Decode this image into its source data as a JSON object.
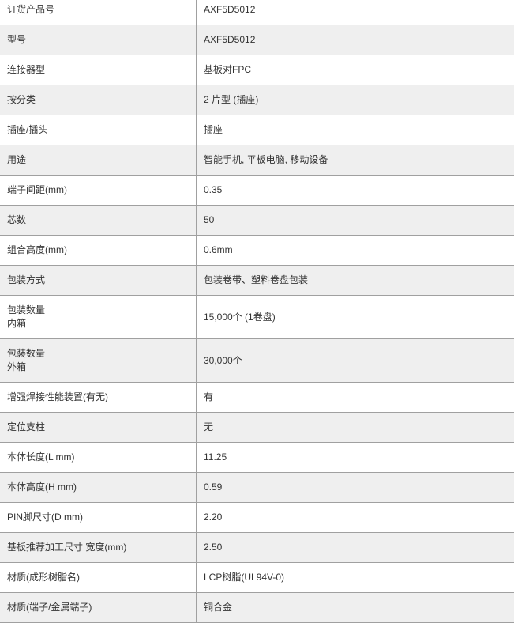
{
  "rows": [
    {
      "label": "订货产品号",
      "value": "AXF5D5012"
    },
    {
      "label": "型号",
      "value": "AXF5D5012"
    },
    {
      "label": "连接器型",
      "value": "基板对FPC"
    },
    {
      "label": "按分类",
      "value": "2 片型 (插座)"
    },
    {
      "label": "插座/插头",
      "value": "插座"
    },
    {
      "label": "用途",
      "value": "智能手机, 平板电脑, 移动设备"
    },
    {
      "label": "端子间距(mm)",
      "value": "0.35"
    },
    {
      "label": "芯数",
      "value": "50"
    },
    {
      "label": "组合高度(mm)",
      "value": "0.6mm"
    },
    {
      "label": "包装方式",
      "value": "包装卷带、塑料卷盘包装"
    },
    {
      "label": "包装数量",
      "label2": "内箱",
      "value": "15,000个 (1卷盘)"
    },
    {
      "label": "包装数量",
      "label2": "外箱",
      "value": "30,000个"
    },
    {
      "label": "增强焊接性能装置(有无)",
      "value": "有"
    },
    {
      "label": "定位支柱",
      "value": "无"
    },
    {
      "label": "本体长度(L mm)",
      "value": "11.25"
    },
    {
      "label": "本体高度(H mm)",
      "value": "0.59"
    },
    {
      "label": "PIN脚尺寸(D mm)",
      "value": "2.20"
    },
    {
      "label": "基板推荐加工尺寸 宽度(mm)",
      "value": "2.50"
    },
    {
      "label": "材质(成形树脂名)",
      "value": "LCP树脂(UL94V-0)"
    },
    {
      "label": "材质(端子/金属端子)",
      "value": "铜合金"
    }
  ]
}
